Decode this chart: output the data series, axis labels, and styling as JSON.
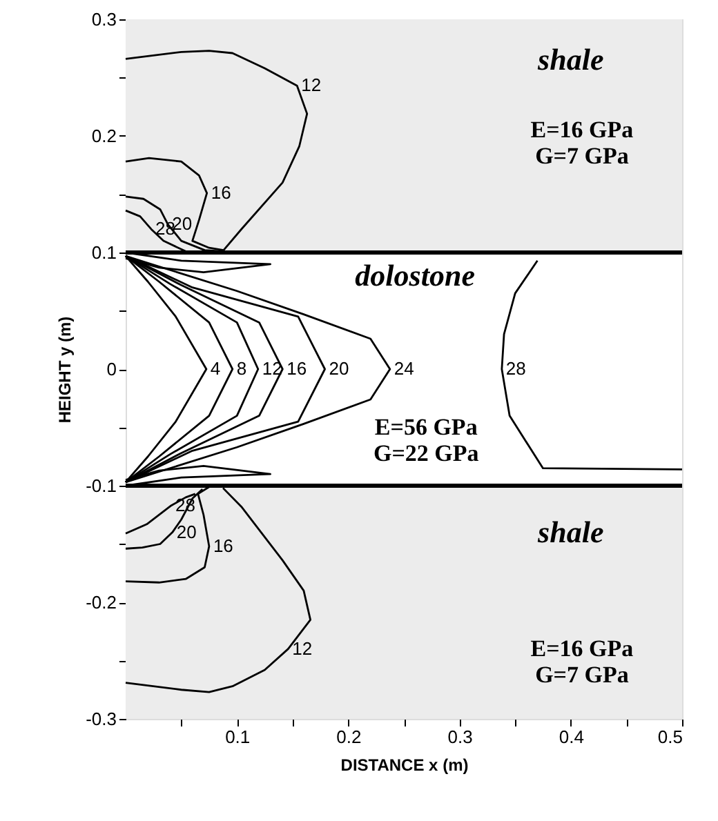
{
  "chart_data": {
    "type": "line",
    "xlabel": "DISTANCE x (m)",
    "ylabel": "HEIGHT y (m)",
    "xlim": [
      0,
      0.5
    ],
    "ylim": [
      -0.3,
      0.3
    ],
    "xticks": [
      {
        "value": 0.05,
        "label": null
      },
      0.1,
      {
        "value": 0.15,
        "label": null
      },
      0.2,
      {
        "value": 0.25,
        "label": null
      },
      0.3,
      {
        "value": 0.35,
        "label": null
      },
      0.4,
      {
        "value": 0.45,
        "label": null
      },
      0.5
    ],
    "yticks": [
      -0.3,
      {
        "value": -0.25,
        "label": null
      },
      -0.2,
      {
        "value": -0.15,
        "label": null
      },
      -0.1,
      {
        "value": -0.05,
        "label": null
      },
      0,
      {
        "value": 0.05,
        "label": null
      },
      0.1,
      {
        "value": 0.15,
        "label": null
      },
      0.2,
      {
        "value": 0.25,
        "label": null
      },
      0.3
    ],
    "grid": false,
    "legend": false,
    "line_style": "solid",
    "series": [
      {
        "name": "12",
        "color": "#000000",
        "x": [
          0,
          0.05,
          0.075,
          0.096,
          0.125,
          0.154,
          0.163,
          0.156,
          0.141,
          0.104,
          0.088
        ],
        "values": [
          0.266,
          0.272,
          0.273,
          0.271,
          0.258,
          0.243,
          0.219,
          0.191,
          0.16,
          0.12,
          0.102
        ]
      },
      {
        "name": "16",
        "color": "#000000",
        "x": [
          0,
          0.021,
          0.05,
          0.066,
          0.073,
          0.066,
          0.06,
          0.075,
          0.088
        ],
        "values": [
          0.178,
          0.181,
          0.178,
          0.166,
          0.151,
          0.128,
          0.11,
          0.104,
          0.102
        ]
      },
      {
        "name": "20",
        "color": "#000000",
        "x": [
          0,
          0.016,
          0.031,
          0.038,
          0.05,
          0.071,
          0.088
        ],
        "values": [
          0.148,
          0.146,
          0.137,
          0.124,
          0.11,
          0.102,
          0.101
        ]
      },
      {
        "name": "28",
        "color": "#000000",
        "x": [
          0,
          0.013,
          0.023,
          0.034,
          0.054
        ],
        "values": [
          0.136,
          0.131,
          0.12,
          0.11,
          0.101
        ]
      },
      {
        "color": "#000000",
        "x": [
          0,
          0.05,
          0.13,
          0.07,
          0.03,
          0
        ],
        "values": [
          0.1,
          0.093,
          0.09,
          0.083,
          0.087,
          0.095
        ]
      },
      {
        "name": "4",
        "color": "#000000",
        "x": [
          0,
          0.02,
          0.045,
          0.0725,
          0.045,
          0.02,
          0
        ],
        "values": [
          0.097,
          0.075,
          0.045,
          0,
          -0.045,
          -0.075,
          -0.097
        ]
      },
      {
        "name": "8",
        "color": "#000000",
        "x": [
          0,
          0.03,
          0.075,
          0.096,
          0.075,
          0.03,
          0
        ],
        "values": [
          0.097,
          0.075,
          0.04,
          0,
          -0.04,
          -0.075,
          -0.097
        ]
      },
      {
        "name": "12",
        "color": "#000000",
        "x": [
          0,
          0.04,
          0.1,
          0.119,
          0.1,
          0.04,
          0
        ],
        "values": [
          0.097,
          0.073,
          0.04,
          0,
          -0.04,
          -0.073,
          -0.097
        ]
      },
      {
        "name": "16",
        "color": "#000000",
        "x": [
          0,
          0.05,
          0.12,
          0.141,
          0.12,
          0.05,
          0
        ],
        "values": [
          0.097,
          0.072,
          0.04,
          0,
          -0.04,
          -0.072,
          -0.097
        ]
      },
      {
        "name": "20",
        "color": "#000000",
        "x": [
          0,
          0.06,
          0.155,
          0.179,
          0.155,
          0.06,
          0
        ],
        "values": [
          0.097,
          0.07,
          0.045,
          0,
          -0.045,
          -0.07,
          -0.097
        ]
      },
      {
        "name": "24",
        "color": "#000000",
        "x": [
          0,
          0.1,
          0.16,
          0.22,
          0.2375,
          0.22,
          0.16,
          0.1,
          0
        ],
        "values": [
          0.097,
          0.067,
          0.047,
          0.026,
          0,
          -0.026,
          -0.047,
          -0.067,
          -0.097
        ]
      },
      {
        "name": "28",
        "color": "#000000",
        "x": [
          0.37,
          0.35,
          0.34,
          0.338,
          0.345,
          0.375,
          0.5
        ],
        "values": [
          0.093,
          0.065,
          0.03,
          0,
          -0.04,
          -0.085,
          -0.086
        ]
      },
      {
        "color": "#000000",
        "x": [
          0,
          0.05,
          0.13,
          0.07,
          0.03,
          0
        ],
        "values": [
          -0.1,
          -0.093,
          -0.09,
          -0.083,
          -0.087,
          -0.095
        ]
      },
      {
        "name": "28",
        "color": "#000000",
        "x": [
          0,
          0.019,
          0.041,
          0.054,
          0.0625
        ],
        "values": [
          -0.141,
          -0.133,
          -0.117,
          -0.11,
          -0.107
        ]
      },
      {
        "name": "20",
        "color": "#000000",
        "x": [
          0,
          0.015,
          0.031,
          0.042,
          0.05,
          0.06,
          0.069
        ],
        "values": [
          -0.154,
          -0.153,
          -0.15,
          -0.14,
          -0.129,
          -0.111,
          -0.103
        ]
      },
      {
        "name": "16",
        "color": "#000000",
        "x": [
          0,
          0.03,
          0.054,
          0.071,
          0.075,
          0.07,
          0.065,
          0.075,
          0.085
        ],
        "values": [
          -0.182,
          -0.183,
          -0.18,
          -0.17,
          -0.152,
          -0.125,
          -0.107,
          -0.101,
          -0.1
        ]
      },
      {
        "name": "12",
        "color": "#000000",
        "x": [
          0,
          0.05,
          0.075,
          0.096,
          0.125,
          0.146,
          0.166,
          0.16,
          0.141,
          0.104,
          0.0875
        ],
        "values": [
          -0.269,
          -0.275,
          -0.277,
          -0.272,
          -0.258,
          -0.24,
          -0.215,
          -0.19,
          -0.164,
          -0.118,
          -0.102
        ]
      }
    ],
    "ref_lines": [
      {
        "axis": "y",
        "value": 0.1,
        "color": "#000000"
      },
      {
        "axis": "y",
        "value": -0.1,
        "color": "#000000"
      }
    ],
    "bands": [
      {
        "axis": "y",
        "from": 0.1,
        "to": 0.3,
        "label": "shale",
        "color": "#ececec"
      },
      {
        "axis": "y",
        "from": -0.3,
        "to": -0.1,
        "label": "shale",
        "color": "#ececec"
      }
    ],
    "annotations": [
      "dolostone",
      "E=56 GPa",
      "G=22 GPa",
      "E=16 GPa",
      "G=7 GPa",
      "E=16 GPa",
      "G=7 GPa"
    ]
  }
}
